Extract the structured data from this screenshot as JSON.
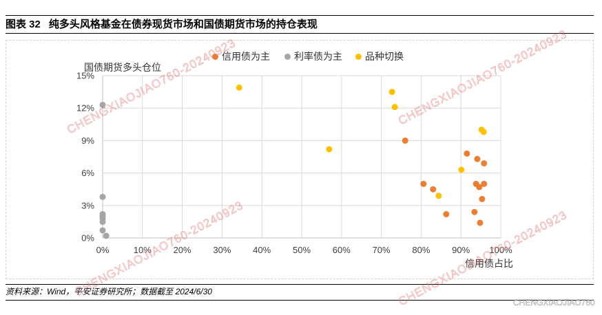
{
  "header": {
    "figure_label": "图表 32"
  },
  "source": "资料来源：Wind，平安证券研究所；数据截至 2024/6/30",
  "watermarks": {
    "diagonal": "CHENGXIAOJIAO760-20240923",
    "corner": "CHENGXIAOJIAO760"
  },
  "chart_data": {
    "type": "scatter",
    "title": "纯多头风格基金在债券现货市场和国债期货市场的持仓表现",
    "xlabel": "信用债占比",
    "ylabel": "国债期货多头仓位",
    "xlim": [
      0,
      100
    ],
    "ylim": [
      0,
      15
    ],
    "x_ticks": {
      "values": [
        0,
        10,
        20,
        30,
        40,
        50,
        60,
        70,
        80,
        90,
        100
      ],
      "labels": [
        "0%",
        "10%",
        "20%",
        "30%",
        "40%",
        "50%",
        "60%",
        "70%",
        "80%",
        "90%",
        "100%"
      ]
    },
    "y_ticks": {
      "values": [
        0,
        3,
        6,
        9,
        12,
        15
      ],
      "labels": [
        "0%",
        "3%",
        "6%",
        "9%",
        "12%",
        "15%"
      ]
    },
    "grid": true,
    "legend": "top",
    "series": [
      {
        "name": "信用债为主",
        "color": "#ED7D31",
        "points": [
          [
            76.0,
            9.0
          ],
          [
            80.6,
            5.0
          ],
          [
            83.0,
            4.5
          ],
          [
            86.3,
            2.2
          ],
          [
            91.5,
            7.8
          ],
          [
            94.1,
            7.3
          ],
          [
            95.8,
            6.9
          ],
          [
            93.8,
            5.0
          ],
          [
            94.6,
            4.7
          ],
          [
            95.8,
            5.0
          ],
          [
            95.3,
            3.6
          ],
          [
            93.4,
            2.4
          ],
          [
            94.8,
            1.4
          ]
        ]
      },
      {
        "name": "利率债为主",
        "color": "#A5A5A5",
        "points": [
          [
            0.0,
            12.3
          ],
          [
            0.0,
            3.8
          ],
          [
            0.0,
            2.2
          ],
          [
            0.0,
            2.0
          ],
          [
            0.0,
            1.8
          ],
          [
            0.0,
            1.5
          ],
          [
            0.0,
            0.7
          ],
          [
            0.9,
            0.2
          ]
        ]
      },
      {
        "name": "品种切换",
        "color": "#FFC000",
        "points": [
          [
            34.3,
            13.9
          ],
          [
            56.9,
            8.2
          ],
          [
            72.7,
            13.5
          ],
          [
            73.4,
            12.1
          ],
          [
            84.4,
            3.9
          ],
          [
            90.1,
            6.3
          ],
          [
            95.2,
            10.0
          ],
          [
            95.7,
            9.8
          ]
        ]
      }
    ]
  }
}
